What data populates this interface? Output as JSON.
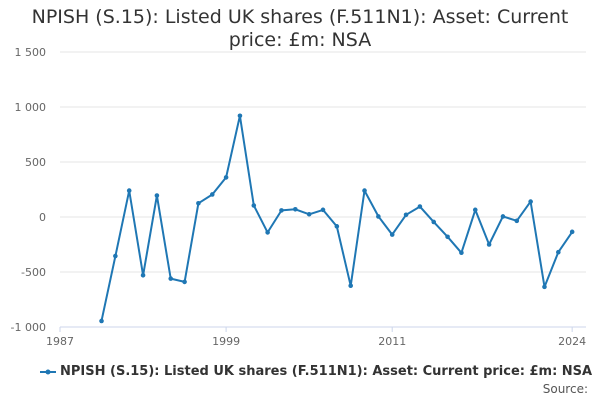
{
  "title_line1": "NPISH (S.15): Listed UK shares (F.511N1): Asset: Current",
  "title_line2": "price: £m: NSA",
  "source_label": "Source:",
  "colors": {
    "series": "#1f77b4",
    "grid": "#e6e6e6",
    "axis": "#ccd6eb",
    "text": "#666666"
  },
  "chart_data": {
    "type": "line",
    "title": "NPISH (S.15): Listed UK shares (F.511N1): Asset: Current price: £m: NSA",
    "xlabel": "",
    "ylabel": "",
    "xlim": [
      1987,
      2025
    ],
    "ylim": [
      -1000,
      1500
    ],
    "x_ticks": [
      1987,
      1999,
      2011,
      2024
    ],
    "y_ticks": [
      -1000,
      -500,
      0,
      500,
      1000,
      1500
    ],
    "y_tick_labels": [
      "-1 000",
      "-500",
      "0",
      "500",
      "1 000",
      "1 500"
    ],
    "grid": true,
    "legend": "bottom",
    "series": [
      {
        "name": "NPISH (S.15): Listed UK shares (F.511N1): Asset: Current price: £m: NSA",
        "x": [
          1990,
          1991,
          1992,
          1993,
          1994,
          1995,
          1996,
          1997,
          1998,
          1999,
          2000,
          2001,
          2002,
          2003,
          2004,
          2005,
          2006,
          2007,
          2008,
          2009,
          2010,
          2011,
          2012,
          2013,
          2014,
          2015,
          2016,
          2017,
          2018,
          2019,
          2020,
          2021,
          2022,
          2023,
          2024
        ],
        "values": [
          -945,
          -355,
          240,
          -530,
          195,
          -560,
          -590,
          125,
          205,
          360,
          920,
          105,
          -140,
          60,
          70,
          25,
          65,
          -85,
          -625,
          240,
          5,
          -160,
          20,
          95,
          -45,
          -180,
          -325,
          65,
          -250,
          5,
          -35,
          140,
          -635,
          -320,
          -135
        ]
      }
    ]
  }
}
